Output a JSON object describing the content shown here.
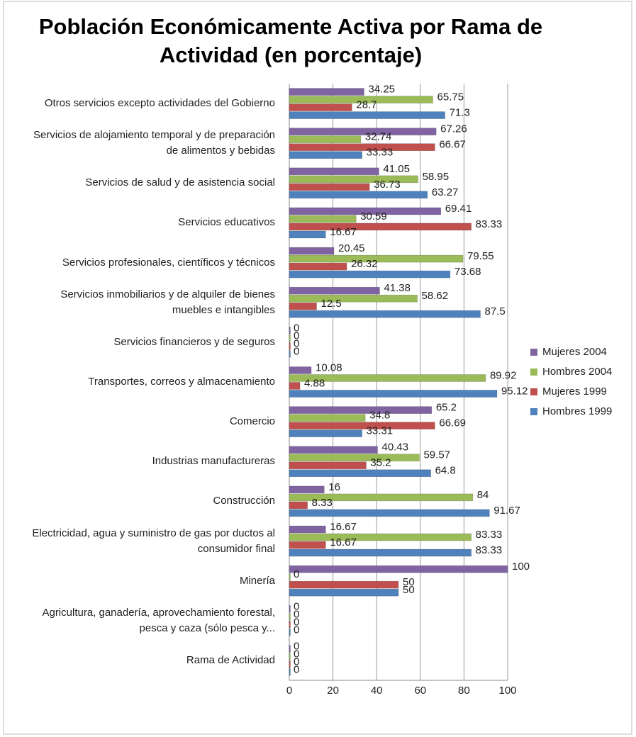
{
  "chart_data": {
    "type": "bar",
    "orientation": "horizontal",
    "title": "Población Económicamente Activa por Rama de Actividad (en porcentaje)",
    "categories": [
      "Otros servicios excepto actividades del Gobierno",
      "Servicios de alojamiento temporal y de preparación de alimentos y bebidas",
      "Servicios de salud y de asistencia social",
      "Servicios educativos",
      "Servicios profesionales, científicos y técnicos",
      "Servicios inmobiliarios y de alquiler de bienes muebles e intangibles",
      "Servicios financieros y de seguros",
      "Transportes, correos y almacenamiento",
      "Comercio",
      "Industrias manufactureras",
      "Construcción",
      "Electricidad, agua y suministro de gas por ductos al consumidor final",
      "Minería",
      "Agricultura, ganadería, aprovechamiento forestal, pesca y caza (sólo pesca y...",
      "Rama de Actividad"
    ],
    "series": [
      {
        "name": "Mujeres 2004",
        "color": "#8064a2",
        "values": [
          34.25,
          67.26,
          41.05,
          69.41,
          20.45,
          41.38,
          0,
          10.08,
          65.2,
          40.43,
          16,
          16.67,
          100,
          0,
          0
        ]
      },
      {
        "name": "Hombres 2004",
        "color": "#9bbb59",
        "values": [
          65.75,
          32.74,
          58.95,
          30.59,
          79.55,
          58.62,
          0,
          89.92,
          34.8,
          59.57,
          84,
          83.33,
          0,
          0,
          0
        ]
      },
      {
        "name": "Mujeres 1999",
        "color": "#c0504d",
        "values": [
          28.7,
          66.67,
          36.73,
          83.33,
          26.32,
          12.5,
          0,
          4.88,
          66.69,
          35.2,
          8.33,
          16.67,
          50,
          0,
          0
        ]
      },
      {
        "name": "Hombres 1999",
        "color": "#4f81bd",
        "values": [
          71.3,
          33.33,
          63.27,
          16.67,
          73.68,
          87.5,
          0,
          95.12,
          33.31,
          64.8,
          91.67,
          83.33,
          50,
          0,
          0
        ]
      }
    ],
    "xlim": [
      0,
      100
    ],
    "xticks": [
      0,
      20,
      40,
      60,
      80,
      100
    ],
    "grid": true,
    "legend": "right"
  }
}
